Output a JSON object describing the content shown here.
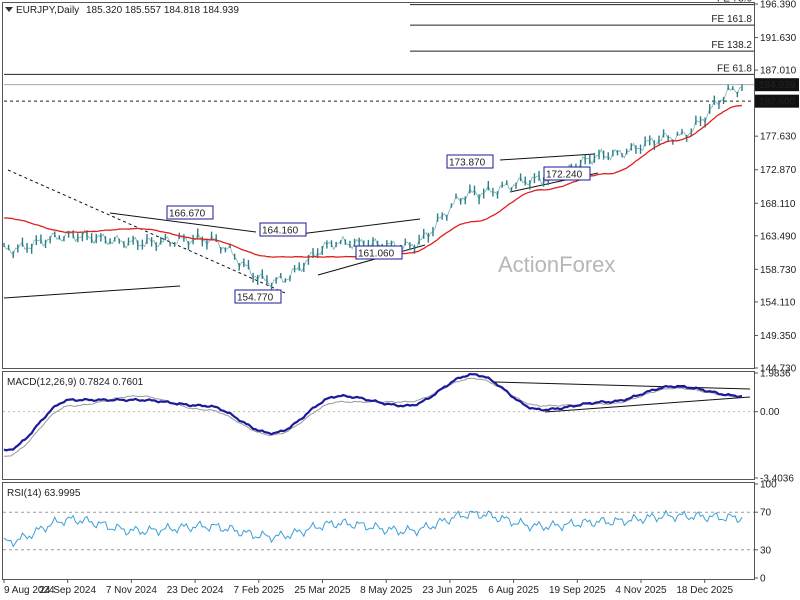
{
  "header": {
    "symbol": "EURJPY,Daily",
    "ohlc": "185.320 185.557 184.818 184.939"
  },
  "watermark": "ActionForex",
  "colors": {
    "price": "#2a7f86",
    "ma": "#e02020",
    "macd": "#1a1a9a",
    "signal": "#999999",
    "rsi": "#3aa0d8",
    "grid": "#c8c8c8",
    "marker_bg": "#111111"
  },
  "chart_data": [
    {
      "type": "line",
      "panel": "price",
      "ylim": [
        144.73,
        196.39
      ],
      "y_ticks": [
        "196.390",
        "191.630",
        "187.010",
        "182.600",
        "177.630",
        "172.870",
        "168.110",
        "163.490",
        "158.730",
        "154.110",
        "149.350",
        "144.730"
      ],
      "x_ticks": [
        "9 Aug 2024",
        "24 Sep 2024",
        "7 Nov 2024",
        "23 Dec 2024",
        "7 Feb 2025",
        "25 Mar 2025",
        "8 May 2025",
        "23 Jun 2025",
        "6 Aug 2025",
        "19 Sep 2025",
        "4 Nov 2025",
        "18 Dec 2025"
      ],
      "current_price": "184.939",
      "support_level": "182.600",
      "annotations": [
        "166.670",
        "164.160",
        "161.060",
        "154.770",
        "173.870",
        "172.240"
      ],
      "fib_levels": [
        {
          "label": "FE 78.6",
          "value": 196.3
        },
        {
          "label": "FE 161.8",
          "value": 193.4
        },
        {
          "label": "FE 138.2",
          "value": 189.7
        },
        {
          "label": "FE 61.8",
          "value": 186.4
        }
      ],
      "series": [
        {
          "x": [
            "9 Aug 2024",
            "24 Sep 2024",
            "7 Nov 2024",
            "23 Dec 2024",
            "7 Feb 2025",
            "25 Mar 2025",
            "8 May 2025",
            "23 Jun 2025",
            "6 Aug 2025",
            "19 Sep 2025",
            "4 Nov 2025",
            "18 Dec 2025"
          ],
          "values": [
            161.5,
            163.5,
            162.5,
            163.0,
            157.0,
            162.5,
            162.0,
            169.5,
            171.5,
            175.0,
            177.5,
            184.5
          ]
        },
        {
          "x": [
            "9 Aug 2024",
            "24 Sep 2024",
            "7 Nov 2024",
            "23 Dec 2024",
            "7 Feb 2025",
            "25 Mar 2025",
            "8 May 2025",
            "23 Jun 2025",
            "6 Aug 2025",
            "19 Sep 2025",
            "4 Nov 2025",
            "18 Dec 2025"
          ],
          "values": [
            166.0,
            164.0,
            164.5,
            163.0,
            160.5,
            160.5,
            161.0,
            165.5,
            170.0,
            172.3,
            177.0,
            182.0
          ]
        }
      ]
    },
    {
      "type": "line",
      "panel": "macd",
      "title": "MACD(12,26,9) 0.7824 0.7601",
      "ylim": [
        -3.4036,
        1.9836
      ],
      "y_ticks": [
        "1.9836",
        "0.00",
        "-3.4036"
      ],
      "series": [
        {
          "x": [
            "9 Aug 2024",
            "24 Sep 2024",
            "7 Nov 2024",
            "23 Dec 2024",
            "7 Feb 2025",
            "25 Mar 2025",
            "8 May 2025",
            "23 Jun 2025",
            "6 Aug 2025",
            "19 Sep 2025",
            "4 Nov 2025",
            "18 Dec 2025"
          ],
          "values": [
            -2.0,
            0.6,
            0.6,
            0.3,
            -1.1,
            0.8,
            0.3,
            1.9,
            0.1,
            0.5,
            1.3,
            0.8
          ]
        },
        {
          "x": [
            "9 Aug 2024",
            "24 Sep 2024",
            "7 Nov 2024",
            "23 Dec 2024",
            "7 Feb 2025",
            "25 Mar 2025",
            "8 May 2025",
            "23 Jun 2025",
            "6 Aug 2025",
            "19 Sep 2025",
            "4 Nov 2025",
            "18 Dec 2025"
          ],
          "values": [
            -2.3,
            0.3,
            0.8,
            0.1,
            -1.2,
            0.5,
            0.5,
            1.7,
            0.3,
            0.4,
            1.2,
            0.76
          ]
        }
      ]
    },
    {
      "type": "line",
      "panel": "rsi",
      "title": "RSI(14) 63.9995",
      "ylim": [
        0,
        100
      ],
      "y_ticks": [
        "100",
        "70",
        "30",
        "0"
      ],
      "series": [
        {
          "x": [
            "9 Aug 2024",
            "24 Sep 2024",
            "7 Nov 2024",
            "23 Dec 2024",
            "7 Feb 2025",
            "25 Mar 2025",
            "8 May 2025",
            "23 Jun 2025",
            "6 Aug 2025",
            "19 Sep 2025",
            "4 Nov 2025",
            "18 Dec 2025"
          ],
          "values": [
            38,
            62,
            50,
            55,
            44,
            58,
            50,
            68,
            55,
            60,
            66,
            64
          ]
        }
      ]
    }
  ]
}
